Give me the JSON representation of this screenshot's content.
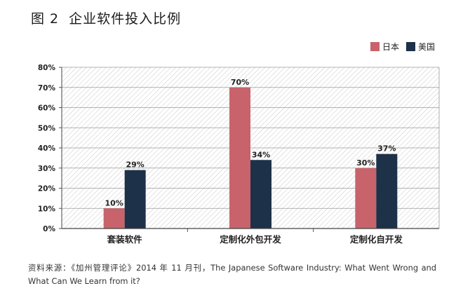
{
  "title": {
    "figure_no": "图 2",
    "text": "企业软件投入比例"
  },
  "source": "资料来源：《加州管理评论》2014 年 11 月刊，The Japanese Software Industry: What Went Wrong and What Can We Learn from it?",
  "chart_data": {
    "type": "bar",
    "title": "企业软件投入比例",
    "categories": [
      "套装软件",
      "定制化外包开发",
      "定制化自开发"
    ],
    "series": [
      {
        "name": "日本",
        "color": "#c8636b",
        "values": [
          10,
          70,
          30
        ],
        "labels": [
          "10%",
          "70%",
          "30%"
        ]
      },
      {
        "name": "美国",
        "color": "#1d3148",
        "values": [
          29,
          34,
          37
        ],
        "labels": [
          "29%",
          "34%",
          "37%"
        ]
      }
    ],
    "ylim": [
      0,
      80
    ],
    "yticks": [
      "0%",
      "10%",
      "20%",
      "30%",
      "40%",
      "50%",
      "60%",
      "70%",
      "80%"
    ],
    "xlabel": "",
    "ylabel": "",
    "grid": true,
    "legend_position": "top-right"
  }
}
